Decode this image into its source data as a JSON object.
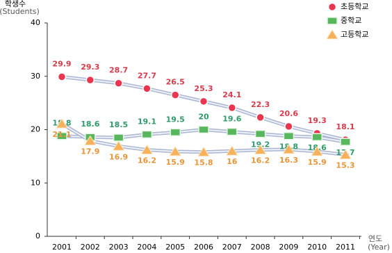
{
  "chart_data": {
    "type": "line",
    "y_label": "학생수",
    "y_label_sub": "(Students)",
    "x_label": "연도",
    "x_label_sub": "(Year)",
    "categories": [
      "2001",
      "2002",
      "2003",
      "2004",
      "2005",
      "2006",
      "2007",
      "2008",
      "2009",
      "2010",
      "2011"
    ],
    "ylim": [
      0,
      40
    ],
    "yticks": [
      0,
      10,
      20,
      30,
      40
    ],
    "grid": false,
    "legend": "top-right",
    "series": [
      {
        "name": "초등학교",
        "marker": "circle",
        "color": "#e8364f",
        "label_color": "#d63b4c",
        "values": [
          29.9,
          29.3,
          28.7,
          27.7,
          26.5,
          25.3,
          24.1,
          22.3,
          20.6,
          19.3,
          18.1
        ]
      },
      {
        "name": "중학교",
        "marker": "square",
        "color": "#58b65c",
        "label_color": "#2f9a6a",
        "values": [
          18.8,
          18.6,
          18.5,
          19.1,
          19.5,
          20,
          19.6,
          19.2,
          18.8,
          18.6,
          17.7
        ]
      },
      {
        "name": "고등학교",
        "marker": "triangle",
        "color": "#f6b25a",
        "label_color": "#e8953a",
        "values": [
          21.1,
          17.9,
          16.9,
          16.2,
          15.9,
          15.8,
          16,
          16.2,
          16.3,
          15.9,
          15.3
        ]
      }
    ]
  }
}
